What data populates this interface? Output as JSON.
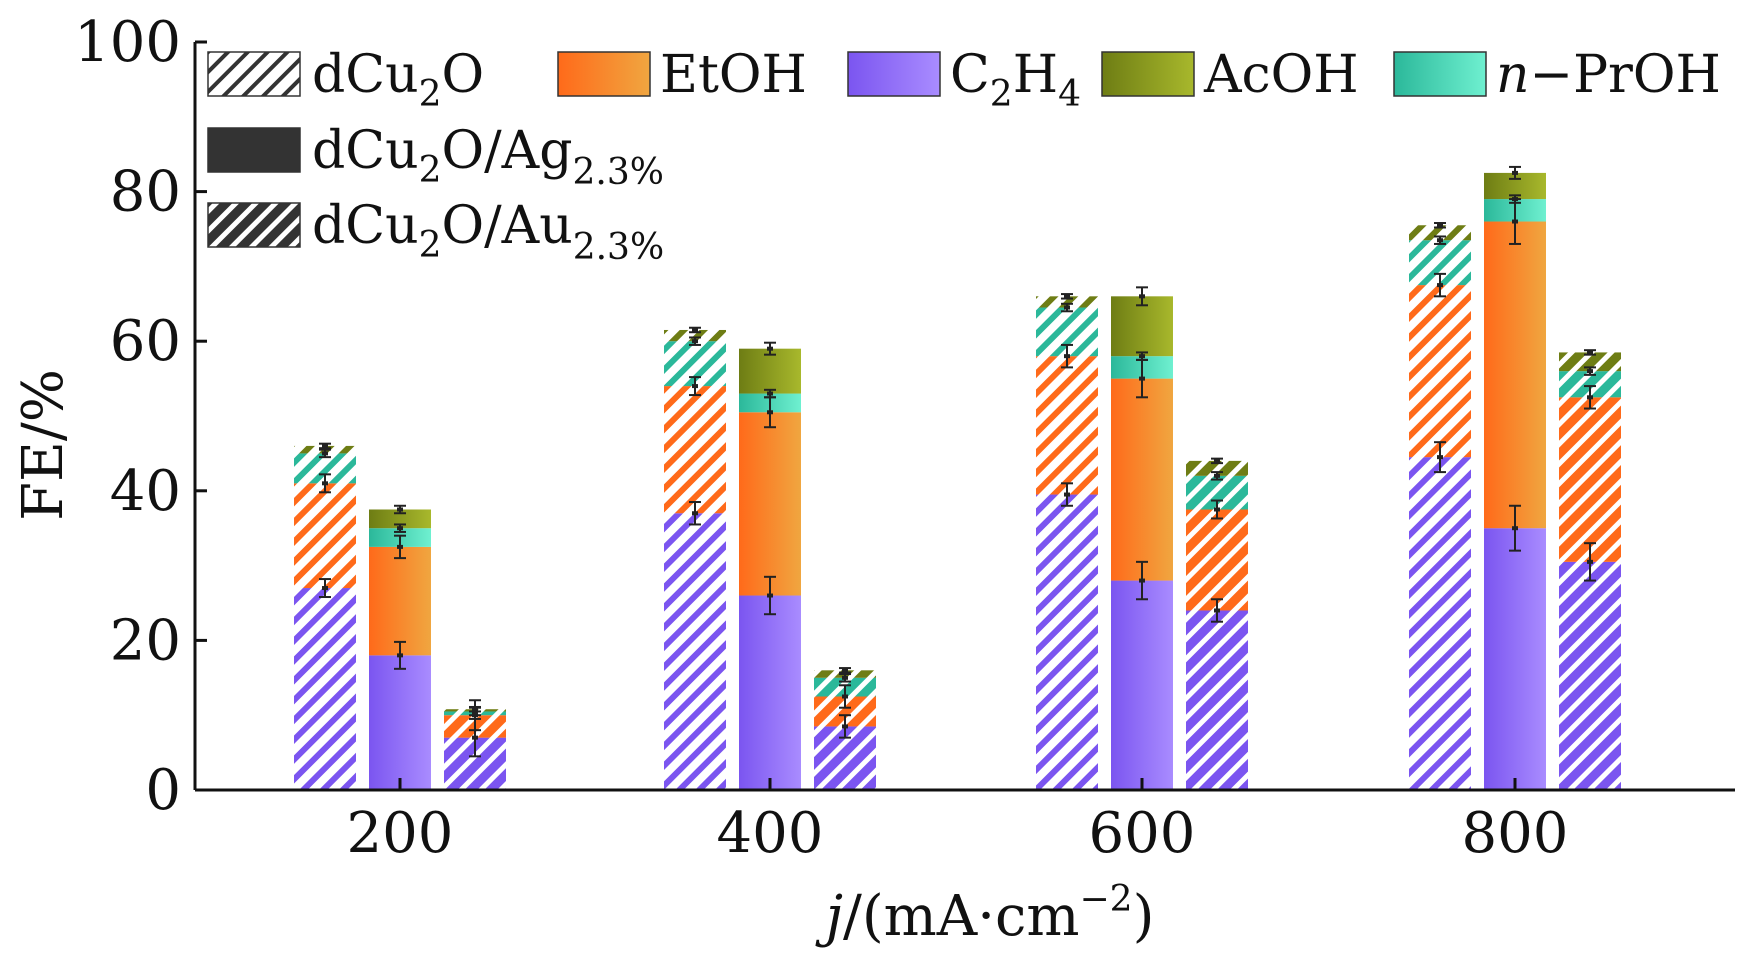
{
  "chart_data": {
    "type": "bar",
    "layout": "grouped-stacked",
    "xlabel": {
      "italic": "j",
      "rest": "/(mA·cm",
      "sup": "−2",
      "close": ")"
    },
    "ylabel": "FE/%",
    "ylim": [
      0,
      100
    ],
    "yticks": [
      "0",
      "20",
      "40",
      "60",
      "80",
      "100"
    ],
    "grid": false,
    "legend_position": "top",
    "categories": [
      "200",
      "400",
      "600",
      "800"
    ],
    "products": [
      {
        "key": "c2h4",
        "name": "C2H4",
        "color_light": "#7b55f0",
        "color_dark": "#a98cff"
      },
      {
        "key": "etoh",
        "name": "EtOH",
        "color_light": "#ff6a1a",
        "color_dark": "#f0a640"
      },
      {
        "key": "npoh",
        "name": "n−PrOH",
        "color_light": "#2bb89a",
        "color_dark": "#6ff0d0"
      },
      {
        "key": "acoh",
        "name": "AcOH",
        "color_light": "#6e7d14",
        "color_dark": "#a8b82c"
      }
    ],
    "catalysts": [
      {
        "key": "dcu2o",
        "name": "dCu2O",
        "pattern": "hatch-light"
      },
      {
        "key": "ag",
        "name": "dCu2O/Ag2.3%",
        "pattern": "solid"
      },
      {
        "key": "au",
        "name": "dCu2O/Au2.3%",
        "pattern": "hatch-dark"
      }
    ],
    "series": [
      {
        "name": "dCu2O",
        "values": [
          {
            "c2h4": 27,
            "etoh": 14,
            "npoh": 4,
            "acoh": 1
          },
          {
            "c2h4": 37,
            "etoh": 17,
            "npoh": 6,
            "acoh": 1.5
          },
          {
            "c2h4": 39.5,
            "etoh": 18.5,
            "npoh": 6.5,
            "acoh": 1.5
          },
          {
            "c2h4": 44.5,
            "etoh": 23,
            "npoh": 6,
            "acoh": 2
          }
        ],
        "errors": [
          {
            "c2h4": 1.2,
            "etoh": 1.2,
            "npoh": 0.5,
            "acoh": 0.3
          },
          {
            "c2h4": 1.5,
            "etoh": 1.2,
            "npoh": 0.5,
            "acoh": 0.3
          },
          {
            "c2h4": 1.5,
            "etoh": 1.5,
            "npoh": 0.5,
            "acoh": 0.3
          },
          {
            "c2h4": 2,
            "etoh": 1.5,
            "npoh": 0.5,
            "acoh": 0.3
          }
        ]
      },
      {
        "name": "dCu2O/Ag2.3%",
        "values": [
          {
            "c2h4": 18,
            "etoh": 14.5,
            "npoh": 2.5,
            "acoh": 2.5
          },
          {
            "c2h4": 26,
            "etoh": 24.5,
            "npoh": 2.5,
            "acoh": 6
          },
          {
            "c2h4": 28,
            "etoh": 27,
            "npoh": 3,
            "acoh": 8
          },
          {
            "c2h4": 35,
            "etoh": 41,
            "npoh": 3,
            "acoh": 3.5
          }
        ],
        "errors": [
          {
            "c2h4": 1.8,
            "etoh": 1.5,
            "npoh": 0.5,
            "acoh": 0.5
          },
          {
            "c2h4": 2.5,
            "etoh": 2,
            "npoh": 0.5,
            "acoh": 0.8
          },
          {
            "c2h4": 2.5,
            "etoh": 2.5,
            "npoh": 0.5,
            "acoh": 1.2
          },
          {
            "c2h4": 3,
            "etoh": 3,
            "npoh": 0.5,
            "acoh": 0.8
          }
        ]
      },
      {
        "name": "dCu2O/Au2.3%",
        "values": [
          {
            "c2h4": 7,
            "etoh": 3,
            "npoh": 0.5,
            "acoh": 0.3
          },
          {
            "c2h4": 8.5,
            "etoh": 4,
            "npoh": 2.5,
            "acoh": 1
          },
          {
            "c2h4": 24,
            "etoh": 13.5,
            "npoh": 4.5,
            "acoh": 2
          },
          {
            "c2h4": 30.5,
            "etoh": 22,
            "npoh": 3.5,
            "acoh": 2.5
          }
        ],
        "errors": [
          {
            "c2h4": 2.5,
            "etoh": 2,
            "npoh": 0.5,
            "acoh": 0.3
          },
          {
            "c2h4": 1.5,
            "etoh": 1.5,
            "npoh": 0.5,
            "acoh": 0.3
          },
          {
            "c2h4": 1.5,
            "etoh": 1.2,
            "npoh": 0.5,
            "acoh": 0.3
          },
          {
            "c2h4": 2.5,
            "etoh": 1.5,
            "npoh": 0.5,
            "acoh": 0.3
          }
        ]
      }
    ]
  },
  "legend": {
    "catalysts": [
      {
        "base": "dCu",
        "sub": "2",
        "rest": "O",
        "sub2": ""
      },
      {
        "base": "dCu",
        "sub": "2",
        "rest": "O/Ag",
        "sub2": "2.3%"
      },
      {
        "base": "dCu",
        "sub": "2",
        "rest": "O/Au",
        "sub2": "2.3%"
      }
    ],
    "products": [
      {
        "key": "etoh",
        "parts": [
          {
            "t": "EtOH"
          }
        ]
      },
      {
        "key": "c2h4",
        "parts": [
          {
            "t": "C"
          },
          {
            "t": "2",
            "sub": true
          },
          {
            "t": "H"
          },
          {
            "t": "4",
            "sub": true
          }
        ]
      },
      {
        "key": "acoh",
        "parts": [
          {
            "t": "AcOH"
          }
        ]
      },
      {
        "key": "npoh",
        "parts": [
          {
            "t": "n",
            "italic": true
          },
          {
            "t": "−PrOH"
          }
        ]
      }
    ]
  }
}
